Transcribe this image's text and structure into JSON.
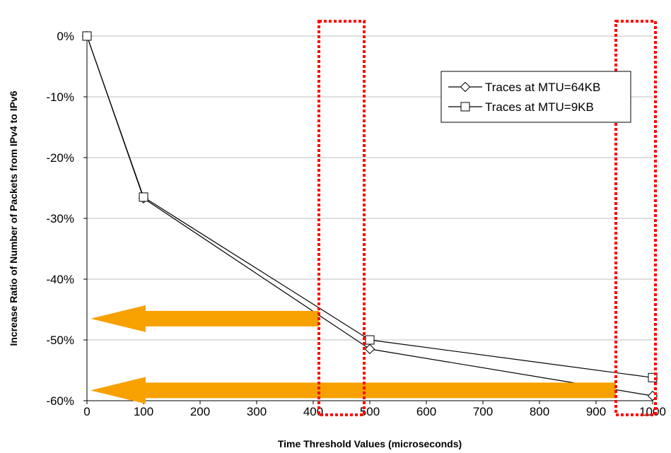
{
  "chart_data": {
    "type": "line",
    "xlabel": "Time Threshold Values (microseconds)",
    "ylabel": "Increase Ratio of Number of Packets from IPv4 to IPv6",
    "xlim": [
      0,
      1000
    ],
    "ylim": [
      -60,
      0
    ],
    "x_ticks": [
      0,
      100,
      200,
      300,
      400,
      500,
      600,
      700,
      800,
      900,
      1000
    ],
    "y_ticks": [
      0,
      -10,
      -20,
      -30,
      -40,
      -50,
      -60
    ],
    "y_tick_labels": [
      "0%",
      "-10%",
      "-20%",
      "-30%",
      "-40%",
      "-50%",
      "-60%"
    ],
    "grid": "horizontal",
    "legend_position": "top-right",
    "series": [
      {
        "name": "Traces at MTU=64KB",
        "marker": "diamond",
        "x": [
          0,
          100,
          500,
          1000
        ],
        "y": [
          0,
          -26.7,
          -51.5,
          -59.2
        ]
      },
      {
        "name": "Traces at MTU=9KB",
        "marker": "square",
        "x": [
          0,
          100,
          500,
          1000
        ],
        "y": [
          0,
          -26.5,
          -50.0,
          -56.2
        ]
      }
    ],
    "highlight_ranges_x": [
      [
        410,
        490
      ],
      [
        935,
        1005
      ]
    ],
    "arrows": [
      {
        "from_x": 410,
        "to_x": 0,
        "y": -46.5
      },
      {
        "from_x": 935,
        "to_x": 0,
        "y": -58.3
      }
    ],
    "colors": {
      "highlight": "#ff0000",
      "arrow": "#f7a100",
      "line": "#000000",
      "grid": "#bfbfbf"
    }
  }
}
